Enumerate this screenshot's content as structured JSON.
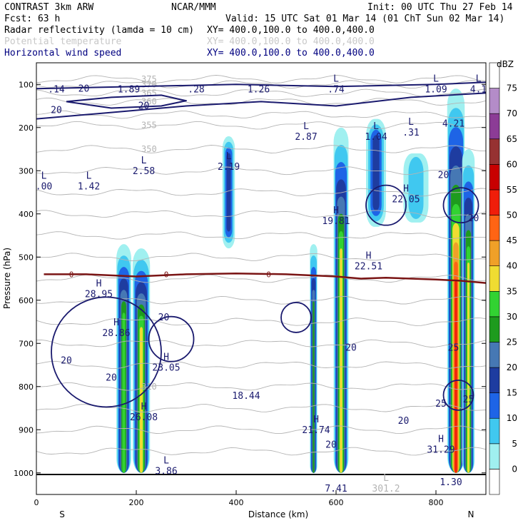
{
  "header": {
    "line1_left": "CONTRAST  3km ARW",
    "line1_mid": "NCAR/MMM",
    "line1_right": "Init: 00 UTC Thu 27 Feb 14",
    "line2_left": "Fcst:   63 h",
    "line2_right": "Valid: 15 UTC Sat 01 Mar 14 (01 ChT Sun 02 Mar 14)",
    "fields": [
      {
        "name": "Radar reflectivity (lamda = 10 cm)",
        "xy": "XY= 400.0,100.0 to 400.0,400.0",
        "color": "#000000"
      },
      {
        "name": "Potential temperature",
        "xy": "XY= 400.0,100.0 to 400.0,400.0",
        "color": "#c8c8c8"
      },
      {
        "name": "Horizontal wind speed",
        "xy": "XY= 400.0,100.0 to 400.0,400.0",
        "color": "#000080"
      }
    ]
  },
  "chart_data": {
    "type": "heatmap",
    "title": "",
    "xlabel": "Distance (km)",
    "ylabel": "Pressure (hPa)",
    "xlim": [
      0,
      900
    ],
    "ylim": [
      1050,
      50
    ],
    "xticks": [
      0,
      200,
      400,
      600,
      800
    ],
    "yticks": [
      100,
      200,
      300,
      400,
      500,
      600,
      700,
      800,
      900,
      1000
    ],
    "x_end_labels": [
      "S",
      "N"
    ],
    "colorbar": {
      "unit": "dBZ",
      "levels": [
        0,
        5,
        10,
        15,
        20,
        25,
        30,
        35,
        40,
        45,
        50,
        55,
        60,
        65,
        70,
        75
      ],
      "colors": [
        "#ffffff",
        "#a0f0f0",
        "#40c8f0",
        "#1e64e6",
        "#1e3ca0",
        "#4678b4",
        "#1e9b1e",
        "#32d232",
        "#f0dc32",
        "#f0a028",
        "#ff6414",
        "#f01e0a",
        "#c80000",
        "#963232",
        "#8c3c96",
        "#b48cc8"
      ]
    },
    "reflectivity_cores": [
      {
        "x": 175,
        "p_top": 470,
        "p_bottom": 1000,
        "width_km": 30,
        "max_dbz": 35
      },
      {
        "x": 210,
        "p_top": 480,
        "p_bottom": 1000,
        "width_km": 35,
        "max_dbz": 40
      },
      {
        "x": 385,
        "p_top": 220,
        "p_bottom": 480,
        "width_km": 25,
        "max_dbz": 20
      },
      {
        "x": 555,
        "p_top": 470,
        "p_bottom": 1000,
        "width_km": 15,
        "max_dbz": 30
      },
      {
        "x": 610,
        "p_top": 200,
        "p_bottom": 1000,
        "width_km": 30,
        "max_dbz": 40
      },
      {
        "x": 680,
        "p_top": 180,
        "p_bottom": 430,
        "width_km": 40,
        "max_dbz": 20
      },
      {
        "x": 760,
        "p_top": 260,
        "p_bottom": 420,
        "width_km": 50,
        "max_dbz": 10
      },
      {
        "x": 840,
        "p_top": 110,
        "p_bottom": 1000,
        "width_km": 35,
        "max_dbz": 55
      },
      {
        "x": 865,
        "p_top": 250,
        "p_bottom": 1000,
        "width_km": 25,
        "max_dbz": 40
      }
    ],
    "theta_contours": [
      {
        "p": 950,
        "label": ""
      },
      {
        "p": 900,
        "label": ""
      },
      {
        "p": 850,
        "label": ""
      },
      {
        "p": 800,
        "label": "310"
      },
      {
        "p": 750,
        "label": ""
      },
      {
        "p": 700,
        "label": ""
      },
      {
        "p": 650,
        "label": ""
      },
      {
        "p": 600,
        "label": ""
      },
      {
        "p": 550,
        "label": ""
      },
      {
        "p": 500,
        "label": ""
      },
      {
        "p": 450,
        "label": ""
      },
      {
        "p": 400,
        "label": ""
      },
      {
        "p": 350,
        "label": ""
      },
      {
        "p": 300,
        "label": ""
      },
      {
        "p": 250,
        "label": "350"
      },
      {
        "p": 195,
        "label": "355"
      },
      {
        "p": 170,
        "label": ""
      },
      {
        "p": 140,
        "label": "360"
      },
      {
        "p": 120,
        "label": "365"
      },
      {
        "p": 100,
        "label": "370"
      },
      {
        "p": 88,
        "label": "375"
      }
    ],
    "zero_line": {
      "label": "0",
      "p": [
        540,
        540,
        545,
        540,
        538,
        540,
        545,
        550,
        548,
        550,
        552,
        555,
        560
      ],
      "x": [
        15,
        100,
        200,
        300,
        400,
        500,
        600,
        650,
        700,
        750,
        800,
        850,
        900
      ]
    },
    "wind_labels": [
      {
        "x": 40,
        "p": 160,
        "text": "20"
      },
      {
        "x": 95,
        "p": 110,
        "text": "20"
      },
      {
        "x": 215,
        "p": 150,
        "text": "20"
      },
      {
        "x": 255,
        "p": 640,
        "text": "20"
      },
      {
        "x": 60,
        "p": 740,
        "text": "20"
      },
      {
        "x": 150,
        "p": 780,
        "text": "20"
      },
      {
        "x": 630,
        "p": 710,
        "text": "20"
      },
      {
        "x": 735,
        "p": 880,
        "text": "20"
      },
      {
        "x": 815,
        "p": 310,
        "text": "20"
      },
      {
        "x": 875,
        "p": 410,
        "text": "20"
      },
      {
        "x": 835,
        "p": 710,
        "text": "25"
      },
      {
        "x": 810,
        "p": 840,
        "text": "25"
      },
      {
        "x": 865,
        "p": 830,
        "text": "25"
      },
      {
        "x": 590,
        "p": 935,
        "text": "20"
      }
    ],
    "extrema": [
      {
        "x": 40,
        "p": 100,
        "letter": "",
        "value": ".14"
      },
      {
        "x": 185,
        "p": 100,
        "letter": "",
        "value": "1.89"
      },
      {
        "x": 320,
        "p": 100,
        "letter": "",
        "value": ".28"
      },
      {
        "x": 445,
        "p": 100,
        "letter": "",
        "value": "1.26"
      },
      {
        "x": 600,
        "p": 100,
        "letter": "L",
        "value": ".74"
      },
      {
        "x": 800,
        "p": 100,
        "letter": "L",
        "value": "1.09"
      },
      {
        "x": 885,
        "p": 100,
        "letter": "L",
        "value": "4.1"
      },
      {
        "x": 835,
        "p": 180,
        "letter": "",
        "value": "4.21"
      },
      {
        "x": 750,
        "p": 200,
        "letter": "L",
        "value": ".31"
      },
      {
        "x": 540,
        "p": 210,
        "letter": "L",
        "value": "2.87"
      },
      {
        "x": 680,
        "p": 210,
        "letter": "L",
        "value": "1.04"
      },
      {
        "x": 385,
        "p": 280,
        "letter": "L",
        "value": "2.19"
      },
      {
        "x": 215,
        "p": 290,
        "letter": "L",
        "value": "2.58"
      },
      {
        "x": 15,
        "p": 325,
        "letter": "L",
        "value": ".00"
      },
      {
        "x": 105,
        "p": 325,
        "letter": "L",
        "value": "1.42"
      },
      {
        "x": 740,
        "p": 355,
        "letter": "H",
        "value": "22.05"
      },
      {
        "x": 600,
        "p": 405,
        "letter": "H",
        "value": "19.81"
      },
      {
        "x": 665,
        "p": 510,
        "letter": "H",
        "value": "22.51"
      },
      {
        "x": 125,
        "p": 575,
        "letter": "H",
        "value": "28.95"
      },
      {
        "x": 160,
        "p": 665,
        "letter": "H",
        "value": "28.86"
      },
      {
        "x": 260,
        "p": 745,
        "letter": "H",
        "value": "23.05"
      },
      {
        "x": 420,
        "p": 810,
        "letter": "",
        "value": "18.44"
      },
      {
        "x": 215,
        "p": 860,
        "letter": "H",
        "value": "26.08"
      },
      {
        "x": 560,
        "p": 890,
        "letter": "H",
        "value": "21.74"
      },
      {
        "x": 810,
        "p": 935,
        "letter": "H",
        "value": "31.29"
      },
      {
        "x": 260,
        "p": 985,
        "letter": "L",
        "value": "3.86"
      },
      {
        "x": 600,
        "p": 1025,
        "letter": "",
        "value": "7.41"
      },
      {
        "x": 700,
        "p": 1025,
        "letter": "L",
        "value": "301.2"
      },
      {
        "x": 830,
        "p": 1010,
        "letter": "",
        "value": "1.30"
      }
    ]
  }
}
